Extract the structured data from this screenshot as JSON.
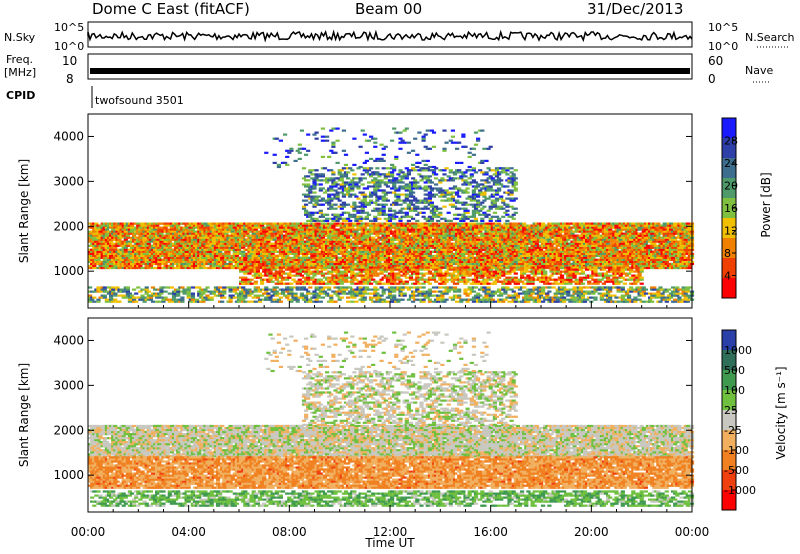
{
  "header": {
    "station": "Dome C East (fitACF)",
    "beam": "Beam 00",
    "date": "31/Dec/2013"
  },
  "aux_panels": {
    "nsky": {
      "label": "N.Sky",
      "ticks_left": [
        "10^5",
        "10^0"
      ],
      "ticks_right": [
        "10^5",
        "10^0"
      ],
      "right_label": "N.Search"
    },
    "freq": {
      "label": "Freq.",
      "unit": "[MHz]",
      "ticks_left": [
        "10",
        "8"
      ],
      "ticks_right": [
        "60",
        "0"
      ],
      "right_label": "Nave"
    },
    "cpid": {
      "label": "CPID",
      "value": "twofsound 3501"
    }
  },
  "chart_data": [
    {
      "type": "heatmap",
      "title": "",
      "xlabel": "Time UT",
      "ylabel": "Slant Range [km]",
      "x_ticks": [
        "00:00",
        "04:00",
        "08:00",
        "12:00",
        "16:00",
        "20:00",
        "00:00"
      ],
      "x_range_hours": [
        0,
        24
      ],
      "y_ticks": [
        1000,
        2000,
        3000,
        4000
      ],
      "ylim": [
        180,
        4500
      ],
      "colorbar": {
        "label": "Power [dB]",
        "ticks": [
          "28",
          "24",
          "20",
          "16",
          "12",
          "8",
          "4"
        ],
        "range": [
          0,
          30
        ],
        "colors": [
          "#1a1aff",
          "#2f3fa8",
          "#3d6e8e",
          "#4f9a6a",
          "#7fc040",
          "#f0c000",
          "#f08000",
          "#f04000",
          "#ff0000"
        ]
      },
      "layers": [
        {
          "name": "near",
          "range_km": [
            300,
            650
          ],
          "t_start": 0,
          "t_end": 24,
          "level": 0.45,
          "density": 0.5
        },
        {
          "name": "main",
          "range_km": [
            1050,
            2100
          ],
          "t_start": 0,
          "t_end": 24,
          "level": 0.7,
          "density": 0.85
        },
        {
          "name": "mid",
          "range_km": [
            700,
            1100
          ],
          "t_start": 6,
          "t_end": 22,
          "level": 0.75,
          "density": 0.55
        },
        {
          "name": "arc",
          "range_km": [
            2100,
            3300
          ],
          "t_start": 8.5,
          "t_end": 17,
          "level": 0.3,
          "density": 0.35
        },
        {
          "name": "sparse",
          "range_km": [
            3300,
            4200
          ],
          "t_start": 7,
          "t_end": 16,
          "level": 0.2,
          "density": 0.08
        }
      ]
    },
    {
      "type": "heatmap",
      "title": "",
      "xlabel": "Time UT",
      "ylabel": "Slant Range [km]",
      "x_ticks": [
        "00:00",
        "04:00",
        "08:00",
        "12:00",
        "16:00",
        "20:00",
        "00:00"
      ],
      "x_range_hours": [
        0,
        24
      ],
      "y_ticks": [
        1000,
        2000,
        3000,
        4000
      ],
      "ylim": [
        180,
        4500
      ],
      "colorbar": {
        "label": "Velocity [m s⁻¹]",
        "ticks": [
          "1000",
          "500",
          "100",
          "25",
          "-25",
          "-100",
          "-500",
          "-1000"
        ],
        "range": [
          -1000,
          1000
        ],
        "colors": [
          "#2a3fa8",
          "#2f6f5a",
          "#3f9a50",
          "#70c040",
          "#c8c8c0",
          "#f0b060",
          "#f08020",
          "#f04010",
          "#ff0000"
        ]
      },
      "layers": [
        {
          "name": "near",
          "range_km": [
            300,
            650
          ],
          "t_start": 0,
          "t_end": 24,
          "vel": 300,
          "density": 0.5
        },
        {
          "name": "main",
          "range_km": [
            1400,
            2100
          ],
          "t_start": 0,
          "t_end": 24,
          "vel": 0,
          "density": 0.8
        },
        {
          "name": "mid",
          "range_km": [
            700,
            1400
          ],
          "t_start": 0,
          "t_end": 24,
          "vel": -400,
          "density": 0.75
        },
        {
          "name": "arc",
          "range_km": [
            2100,
            3300
          ],
          "t_start": 8.5,
          "t_end": 17,
          "vel": 0,
          "density": 0.4
        },
        {
          "name": "sparse",
          "range_km": [
            3300,
            4200
          ],
          "t_start": 7,
          "t_end": 16,
          "vel": -50,
          "density": 0.08
        }
      ]
    }
  ]
}
